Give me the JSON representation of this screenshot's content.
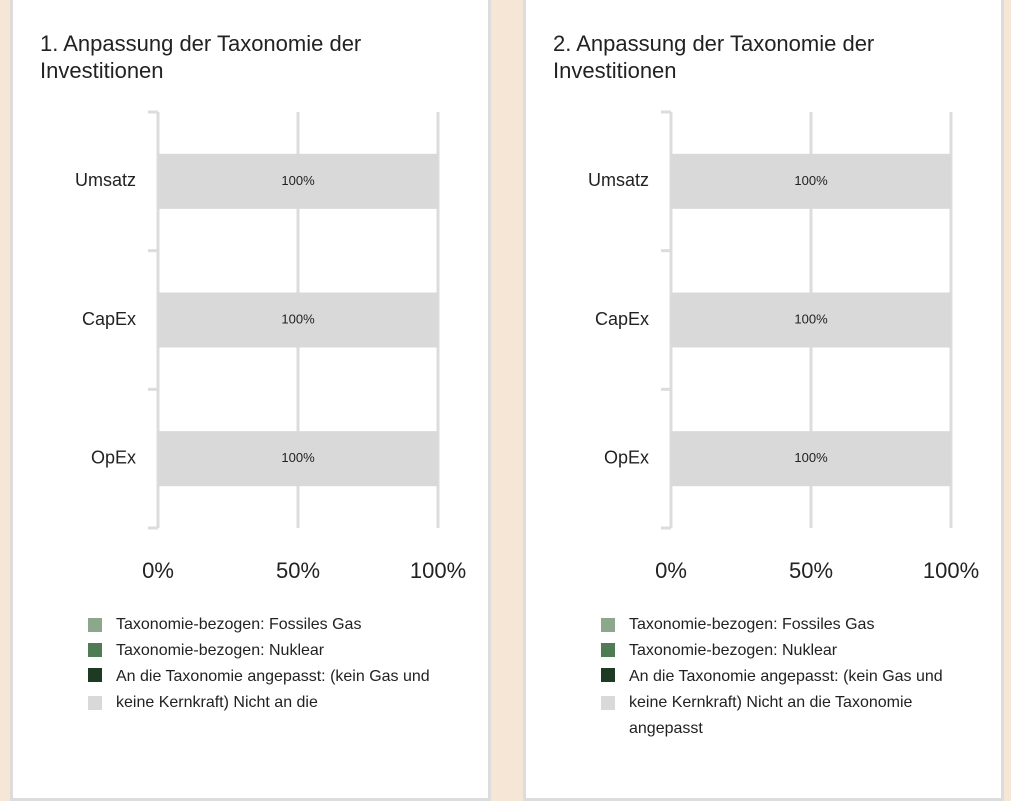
{
  "chart_data": [
    {
      "type": "bar",
      "orientation": "horizontal",
      "stacked": true,
      "title": "1. Anpassung der Taxonomie der Investitionen",
      "categories": [
        "Umsatz",
        "CapEx",
        "OpEx"
      ],
      "series": [
        {
          "name": "Taxonomie-bezogen: Fossiles Gas",
          "color": "#8ba78c",
          "values": [
            0,
            0,
            0
          ]
        },
        {
          "name": "Taxonomie-bezogen: Nuklear",
          "color": "#4f7c54",
          "values": [
            0,
            0,
            0
          ]
        },
        {
          "name": "An die Taxonomie angepasst: (kein Gas und keine Kernkraft)",
          "color": "#1d3b22",
          "values": [
            0,
            0,
            0
          ]
        },
        {
          "name": "Nicht an die",
          "color": "#d9d9d9",
          "values": [
            100,
            100,
            100
          ],
          "value_labels": [
            "100%",
            "100%",
            "100%"
          ]
        }
      ],
      "xlim": [
        0,
        100
      ],
      "xticks": [
        {
          "value": 0,
          "label": "0%"
        },
        {
          "value": 50,
          "label": "50%"
        },
        {
          "value": 100,
          "label": "100%"
        }
      ],
      "grid": true
    },
    {
      "type": "bar",
      "orientation": "horizontal",
      "stacked": true,
      "title": "2. Anpassung der Taxonomie der Investitionen",
      "categories": [
        "Umsatz",
        "CapEx",
        "OpEx"
      ],
      "series": [
        {
          "name": "Taxonomie-bezogen: Fossiles Gas",
          "color": "#8ba78c",
          "values": [
            0,
            0,
            0
          ]
        },
        {
          "name": "Taxonomie-bezogen: Nuklear",
          "color": "#4f7c54",
          "values": [
            0,
            0,
            0
          ]
        },
        {
          "name": "An die Taxonomie angepasst: (kein Gas und keine Kernkraft)",
          "color": "#1d3b22",
          "values": [
            0,
            0,
            0
          ]
        },
        {
          "name": "Nicht an die Taxonomie angepasst",
          "color": "#d9d9d9",
          "values": [
            100,
            100,
            100
          ],
          "value_labels": [
            "100%",
            "100%",
            "100%"
          ]
        }
      ],
      "xlim": [
        0,
        100
      ],
      "xticks": [
        {
          "value": 0,
          "label": "0%"
        },
        {
          "value": 50,
          "label": "50%"
        },
        {
          "value": 100,
          "label": "100%"
        }
      ],
      "grid": true
    }
  ]
}
